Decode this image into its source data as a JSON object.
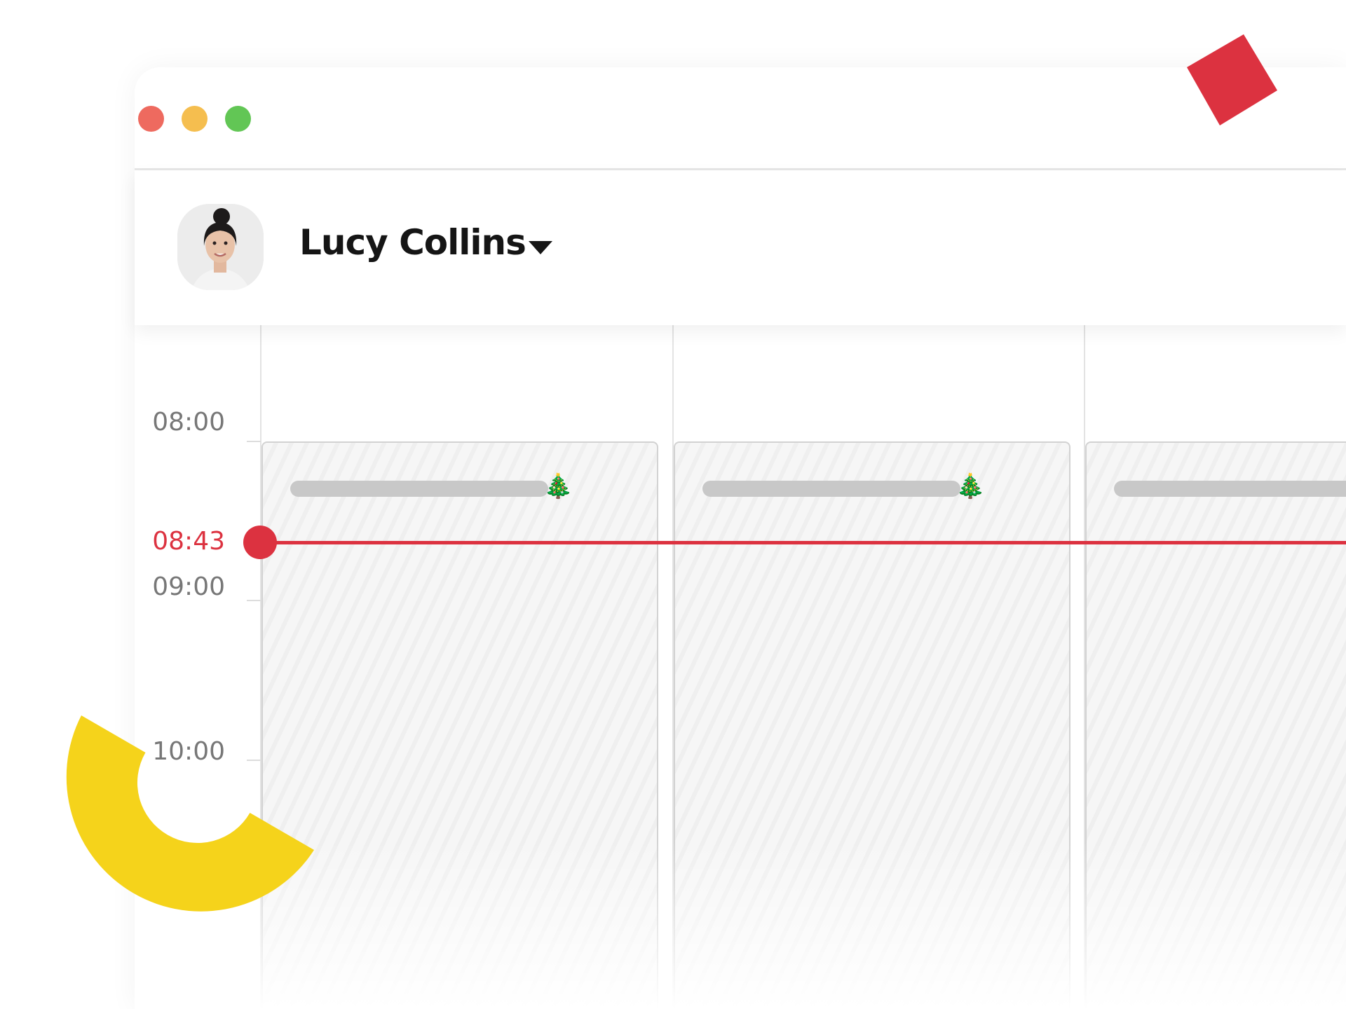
{
  "window": {
    "controls": [
      {
        "name": "close",
        "color": "#EE6A5F"
      },
      {
        "name": "minimize",
        "color": "#F5BE4F"
      },
      {
        "name": "maximize",
        "color": "#62C655"
      }
    ]
  },
  "header": {
    "user_name": "Lucy Collins",
    "avatar_icon": "user-photo",
    "dropdown_icon": "caret-down"
  },
  "timeline": {
    "hours": [
      "08:00",
      "09:00",
      "10:00"
    ],
    "current_time": "08:43",
    "current_time_color": "#DC3240",
    "columns": [
      {
        "emoji": "🎄"
      },
      {
        "emoji": "🎄"
      },
      {
        "emoji": ""
      }
    ]
  },
  "decorations": {
    "diamond_color": "#DC3240",
    "arc_color": "#F5D31B"
  }
}
